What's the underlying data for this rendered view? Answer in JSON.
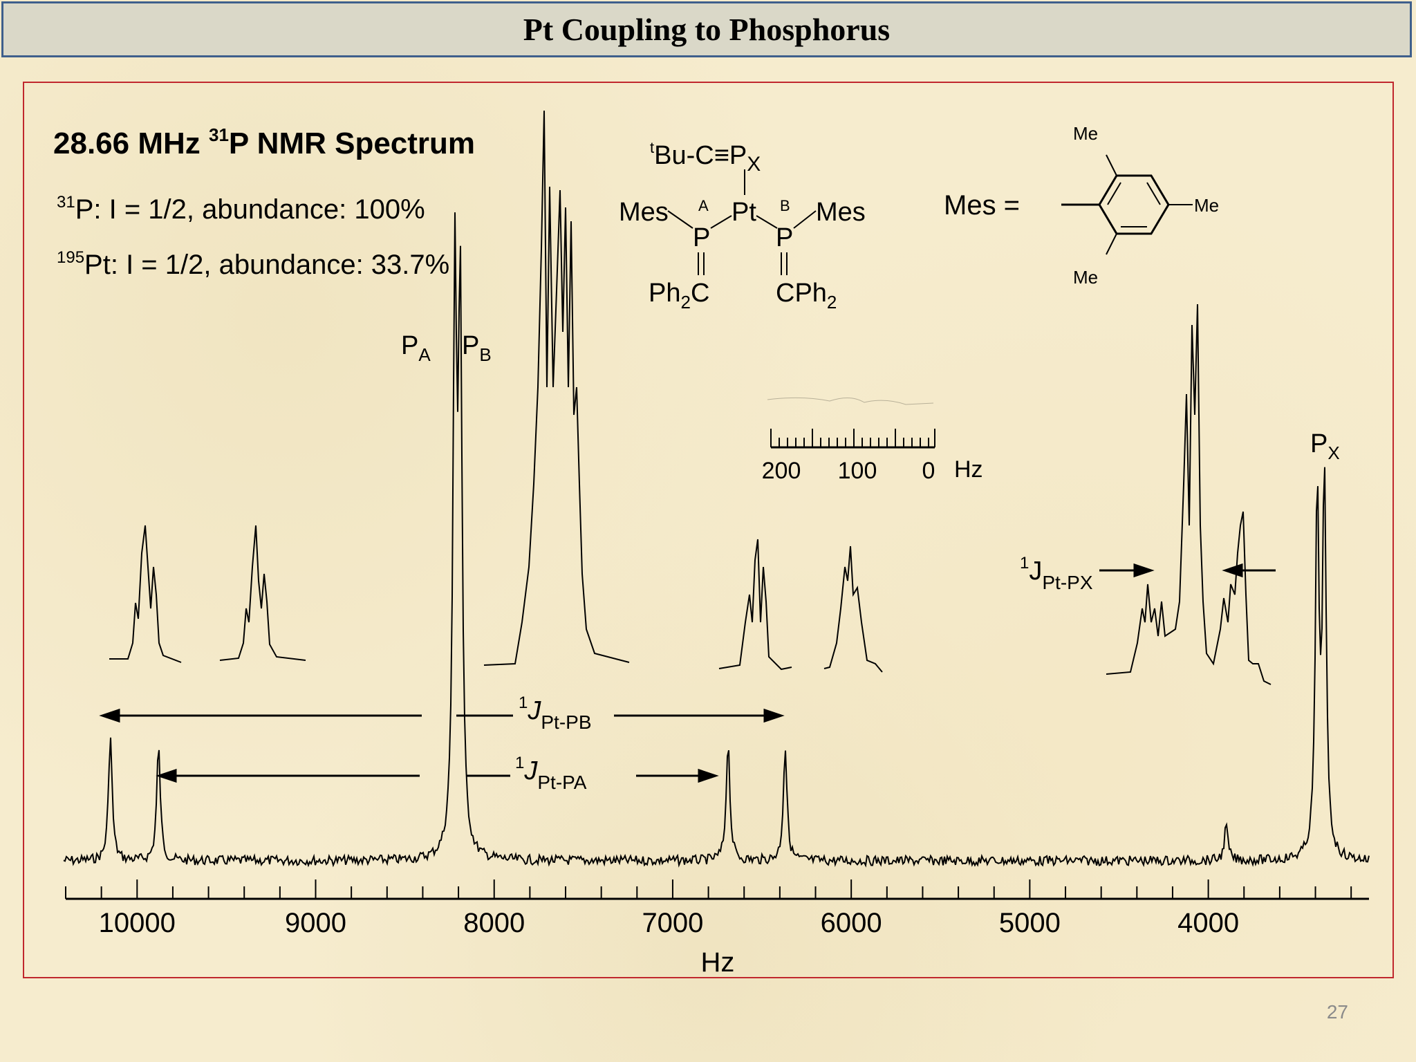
{
  "slide": {
    "title": "Pt Coupling to Phosphorus",
    "page_number": "27"
  },
  "colors": {
    "background": "#f6ecce",
    "title_bar": "#dad8c8",
    "title_border": "#3e5f8c",
    "panel_border": "#c0272d"
  },
  "info": {
    "heading_main": "28.66 MHz ",
    "heading_sup": "31",
    "heading_rest": "P NMR Spectrum",
    "line1_sup": "31",
    "line1_text": "P:  I = 1/2, abundance: 100%",
    "line2_sup": "195",
    "line2_text": "Pt:  I = 1/2, abundance: 33.7%"
  },
  "structure": {
    "tbu_sup": "t",
    "tbu_text": "Bu-C≡P",
    "px_sub": "X",
    "mes_left": "Mes",
    "mes_right": "Mes",
    "label_a": "A",
    "label_b": "B",
    "pt": "Pt",
    "p_left": "P",
    "p_right": "P",
    "ph2c_left": "Ph",
    "ph2c_left_sub": "2",
    "ph2c_left_c": "C",
    "cph2_right": "CPh",
    "cph2_right_sub": "2",
    "mes_eq": "Mes  =",
    "me_top": "Me",
    "me_right": "Me",
    "me_bottom": "Me"
  },
  "peak_labels": {
    "pa": "P",
    "pa_sub": "A",
    "pb": "P",
    "pb_sub": "B",
    "px": "P",
    "px_sub": "X"
  },
  "couplings": {
    "jpb_sup": "1",
    "jpb_j": "J",
    "jpb_sub": "Pt-PB",
    "jpa_sup": "1",
    "jpa_j": "J",
    "jpa_sub": "Pt-PA",
    "jpx_sup": "1",
    "jpx_j": "J",
    "jpx_sub": "Pt-PX"
  },
  "inset_scale": {
    "ticks": [
      "200",
      "100",
      "0"
    ],
    "unit": "Hz"
  },
  "chart_data": {
    "type": "line",
    "title": "28.66 MHz 31P NMR Spectrum",
    "xlabel": "Hz",
    "ylabel": "",
    "xlim": [
      10400,
      3100
    ],
    "x_ticks": [
      10000,
      9000,
      8000,
      7000,
      6000,
      5000,
      4000
    ],
    "x_tick_labels": [
      "10000",
      "9000",
      "8000",
      "7000",
      "6000",
      "5000",
      "4000"
    ],
    "grid": false,
    "series": [
      {
        "name": "",
        "peaks": [
          {
            "x": 10150,
            "height": 0.22
          },
          {
            "x": 9880,
            "height": 0.2
          },
          {
            "x": 8220,
            "height": 1.0
          },
          {
            "x": 8190,
            "height": 0.96
          },
          {
            "x": 6690,
            "height": 0.21
          },
          {
            "x": 6370,
            "height": 0.2
          },
          {
            "x": 3390,
            "height": 0.63
          },
          {
            "x": 3350,
            "height": 0.66
          },
          {
            "x": 3900,
            "height": 0.06
          }
        ]
      }
    ],
    "annotations": [
      "P_A",
      "P_B",
      "P_X",
      "1J Pt-PB",
      "1J Pt-PA",
      "1J Pt-PX"
    ]
  }
}
